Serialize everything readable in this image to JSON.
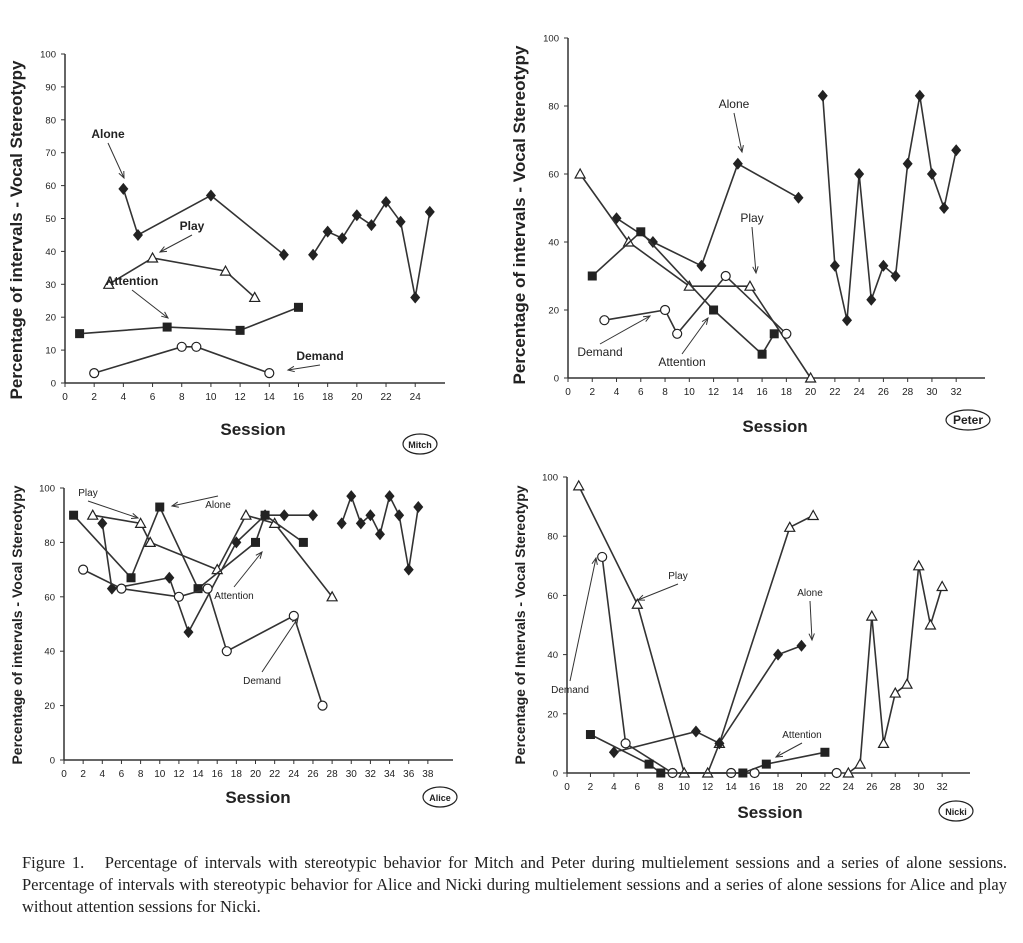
{
  "caption": {
    "label": "Figure 1.",
    "text": "Percentage of intervals with stereotypic behavior for Mitch and Peter during multielement sessions and a series of alone sessions. Percentage of intervals with stereotypic behavior for Alice and Nicki during multielement sessions and a series of alone sessions for Alice and play without attention sessions for Nicki."
  },
  "chart_data": [
    {
      "type": "line",
      "participant": "Mitch",
      "xlabel": "Session",
      "ylabel": "Percentage of intervals - Vocal Stereotypy",
      "xlim": [
        0,
        25
      ],
      "xticks": [
        0,
        2,
        4,
        6,
        8,
        10,
        12,
        14,
        16,
        18,
        20,
        22,
        24
      ],
      "ylim": [
        0,
        100
      ],
      "yticks": [
        0,
        10,
        20,
        30,
        40,
        50,
        60,
        70,
        80,
        90,
        100
      ],
      "series": [
        {
          "name": "Alone",
          "marker": "diamond",
          "segments": [
            [
              [
                4,
                59
              ],
              [
                5,
                45
              ],
              [
                10,
                57
              ],
              [
                15,
                39
              ]
            ],
            [
              [
                17,
                39
              ],
              [
                18,
                46
              ],
              [
                19,
                44
              ],
              [
                20,
                51
              ],
              [
                21,
                48
              ],
              [
                22,
                55
              ],
              [
                23,
                49
              ],
              [
                24,
                26
              ],
              [
                25,
                52
              ]
            ]
          ]
        },
        {
          "name": "Play",
          "marker": "triangle",
          "segments": [
            [
              [
                3,
                30
              ],
              [
                6,
                38
              ],
              [
                11,
                34
              ],
              [
                13,
                26
              ]
            ]
          ]
        },
        {
          "name": "Attention",
          "marker": "square",
          "segments": [
            [
              [
                1,
                15
              ],
              [
                7,
                17
              ],
              [
                12,
                16
              ],
              [
                16,
                23
              ]
            ]
          ]
        },
        {
          "name": "Demand",
          "marker": "circle",
          "segments": [
            [
              [
                2,
                3
              ],
              [
                8,
                11
              ],
              [
                9,
                11
              ],
              [
                14,
                3
              ]
            ]
          ]
        }
      ]
    },
    {
      "type": "line",
      "participant": "Peter",
      "xlabel": "Session",
      "ylabel": "Percentage of intervals - Vocal Stereotypy",
      "xlim": [
        0,
        33
      ],
      "xticks": [
        0,
        2,
        4,
        6,
        8,
        10,
        12,
        14,
        16,
        18,
        20,
        22,
        24,
        26,
        28,
        30,
        32
      ],
      "ylim": [
        0,
        100
      ],
      "yticks": [
        0,
        20,
        40,
        60,
        80,
        100
      ],
      "series": [
        {
          "name": "Alone",
          "marker": "diamond",
          "segments": [
            [
              [
                4,
                47
              ],
              [
                7,
                40
              ],
              [
                11,
                33
              ],
              [
                14,
                63
              ],
              [
                19,
                53
              ]
            ],
            [
              [
                21,
                83
              ],
              [
                22,
                33
              ],
              [
                23,
                17
              ],
              [
                24,
                60
              ],
              [
                25,
                23
              ],
              [
                26,
                33
              ],
              [
                27,
                30
              ],
              [
                28,
                63
              ],
              [
                29,
                83
              ],
              [
                30,
                60
              ],
              [
                31,
                50
              ],
              [
                32,
                67
              ]
            ]
          ]
        },
        {
          "name": "Play",
          "marker": "triangle",
          "segments": [
            [
              [
                1,
                60
              ],
              [
                5,
                40
              ],
              [
                10,
                27
              ],
              [
                15,
                27
              ],
              [
                20,
                0
              ]
            ]
          ]
        },
        {
          "name": "Attention",
          "marker": "square",
          "segments": [
            [
              [
                2,
                30
              ],
              [
                6,
                43
              ],
              [
                12,
                20
              ],
              [
                16,
                7
              ],
              [
                17,
                13
              ]
            ]
          ]
        },
        {
          "name": "Demand",
          "marker": "circle",
          "segments": [
            [
              [
                3,
                17
              ],
              [
                8,
                20
              ],
              [
                9,
                13
              ],
              [
                13,
                30
              ],
              [
                18,
                13
              ]
            ]
          ]
        }
      ]
    },
    {
      "type": "line",
      "participant": "Alice",
      "xlabel": "Session",
      "ylabel": "Percentage of intervals - Vocal Stereotypy",
      "xlim": [
        0,
        39
      ],
      "xticks": [
        0,
        2,
        4,
        6,
        8,
        10,
        12,
        14,
        16,
        18,
        20,
        22,
        24,
        26,
        28,
        30,
        32,
        34,
        36,
        38
      ],
      "ylim": [
        0,
        100
      ],
      "yticks": [
        0,
        20,
        40,
        60,
        80,
        100
      ],
      "series": [
        {
          "name": "Alone",
          "marker": "diamond",
          "segments": [
            [
              [
                4,
                87
              ],
              [
                5,
                63
              ],
              [
                11,
                67
              ],
              [
                13,
                47
              ],
              [
                18,
                80
              ],
              [
                21,
                90
              ],
              [
                23,
                90
              ],
              [
                26,
                90
              ]
            ],
            [
              [
                29,
                87
              ],
              [
                30,
                97
              ],
              [
                31,
                87
              ],
              [
                32,
                90
              ],
              [
                33,
                83
              ],
              [
                34,
                97
              ],
              [
                35,
                90
              ],
              [
                36,
                70
              ],
              [
                37,
                93
              ]
            ]
          ]
        },
        {
          "name": "Play",
          "marker": "triangle",
          "segments": [
            [
              [
                3,
                90
              ],
              [
                8,
                87
              ],
              [
                9,
                80
              ],
              [
                16,
                70
              ],
              [
                19,
                90
              ],
              [
                22,
                87
              ],
              [
                28,
                60
              ]
            ]
          ]
        },
        {
          "name": "Attention",
          "marker": "square",
          "segments": [
            [
              [
                1,
                90
              ],
              [
                7,
                67
              ],
              [
                10,
                93
              ],
              [
                14,
                63
              ],
              [
                20,
                80
              ],
              [
                21,
                90
              ],
              [
                25,
                80
              ]
            ]
          ]
        },
        {
          "name": "Demand",
          "marker": "circle",
          "segments": [
            [
              [
                2,
                70
              ],
              [
                6,
                63
              ],
              [
                12,
                60
              ],
              [
                15,
                63
              ],
              [
                17,
                40
              ],
              [
                24,
                53
              ],
              [
                27,
                20
              ]
            ]
          ]
        }
      ]
    },
    {
      "type": "line",
      "participant": "Nicki",
      "xlabel": "Session",
      "ylabel": "Percentage of Intervals - Vocal Stereotypy",
      "xlim": [
        0,
        33
      ],
      "xticks": [
        0,
        2,
        4,
        6,
        8,
        10,
        12,
        14,
        16,
        18,
        20,
        22,
        24,
        26,
        28,
        30,
        32
      ],
      "ylim": [
        0,
        100
      ],
      "yticks": [
        0,
        20,
        40,
        60,
        80,
        100
      ],
      "series": [
        {
          "name": "Play",
          "marker": "triangle",
          "segments": [
            [
              [
                1,
                97
              ],
              [
                6,
                57
              ],
              [
                10,
                0
              ],
              [
                12,
                0
              ],
              [
                13,
                10
              ],
              [
                19,
                83
              ],
              [
                21,
                87
              ]
            ],
            [
              [
                24,
                0
              ],
              [
                25,
                3
              ],
              [
                26,
                53
              ],
              [
                27,
                10
              ],
              [
                28,
                27
              ],
              [
                29,
                30
              ],
              [
                30,
                70
              ],
              [
                31,
                50
              ],
              [
                32,
                63
              ]
            ]
          ]
        },
        {
          "name": "Demand",
          "marker": "circle",
          "segments": [
            [
              [
                3,
                73
              ],
              [
                5,
                10
              ],
              [
                9,
                0
              ],
              [
                14,
                0
              ],
              [
                16,
                0
              ],
              [
                23,
                0
              ]
            ]
          ]
        },
        {
          "name": "Alone",
          "marker": "diamond",
          "segments": [
            [
              [
                4,
                7
              ],
              [
                11,
                14
              ],
              [
                13,
                10
              ],
              [
                18,
                40
              ],
              [
                20,
                43
              ]
            ]
          ]
        },
        {
          "name": "Attention",
          "marker": "square",
          "segments": [
            [
              [
                2,
                13
              ],
              [
                7,
                3
              ],
              [
                8,
                0
              ],
              [
                15,
                0
              ],
              [
                17,
                3
              ],
              [
                22,
                7
              ]
            ]
          ]
        }
      ]
    }
  ]
}
